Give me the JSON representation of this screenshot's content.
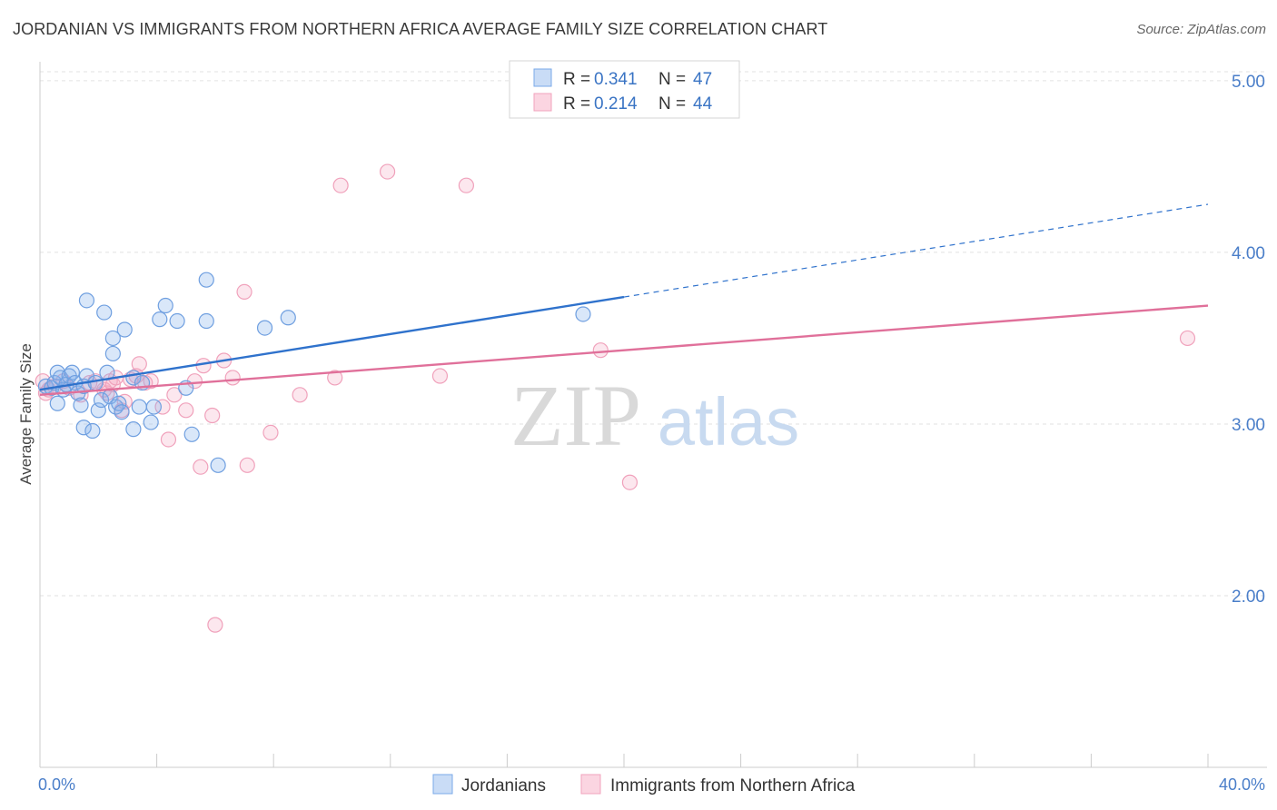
{
  "header": {
    "title": "JORDANIAN VS IMMIGRANTS FROM NORTHERN AFRICA AVERAGE FAMILY SIZE CORRELATION CHART",
    "source": "Source: ZipAtlas.com"
  },
  "watermark": {
    "zip": "ZIP",
    "atlas": "atlas"
  },
  "colors": {
    "jordanians": "#7aaae8",
    "jordanians_line": "#2f72cc",
    "immigrants": "#f2a3bd",
    "immigrants_line": "#e0709a",
    "axis_tick_text": "#4a7ec9"
  },
  "chart_data": {
    "type": "scatter",
    "ylabel": "Average Family Size",
    "x_tick_labels": [
      "0.0%",
      "40.0%"
    ],
    "y_tick_labels": [
      "2.00",
      "3.00",
      "4.00",
      "5.00"
    ],
    "xlim": [
      0,
      40
    ],
    "ylim": [
      1.0,
      5.1
    ],
    "grid": true,
    "legend_position": "top-center",
    "stats": [
      {
        "series": "Jordanians",
        "r_label": "R =",
        "r": "0.341",
        "n_label": "N =",
        "n": "47"
      },
      {
        "series": "Immigrants from Northern Africa",
        "r_label": "R =",
        "r": "0.214",
        "n_label": "N =",
        "n": "44"
      }
    ],
    "series": [
      {
        "name": "Jordanians",
        "trend": {
          "x0": 0,
          "y0": 3.2,
          "x1": 20,
          "y1": 3.74,
          "dashed_to_x": 40,
          "dashed_to_y": 4.28
        },
        "points": [
          [
            0.2,
            3.22
          ],
          [
            0.4,
            3.21
          ],
          [
            0.5,
            3.24
          ],
          [
            0.6,
            3.3
          ],
          [
            0.7,
            3.27
          ],
          [
            0.8,
            3.2
          ],
          [
            0.9,
            3.23
          ],
          [
            0.6,
            3.12
          ],
          [
            1.0,
            3.28
          ],
          [
            1.1,
            3.3
          ],
          [
            1.2,
            3.24
          ],
          [
            1.3,
            3.18
          ],
          [
            1.4,
            3.11
          ],
          [
            1.5,
            3.22
          ],
          [
            1.6,
            3.28
          ],
          [
            1.5,
            2.98
          ],
          [
            1.8,
            2.96
          ],
          [
            1.9,
            3.24
          ],
          [
            2.0,
            3.08
          ],
          [
            2.1,
            3.14
          ],
          [
            2.2,
            3.65
          ],
          [
            2.3,
            3.3
          ],
          [
            2.4,
            3.16
          ],
          [
            2.5,
            3.41
          ],
          [
            2.5,
            3.5
          ],
          [
            2.6,
            3.1
          ],
          [
            2.7,
            3.12
          ],
          [
            2.8,
            3.07
          ],
          [
            2.9,
            3.55
          ],
          [
            1.6,
            3.72
          ],
          [
            3.2,
            3.27
          ],
          [
            3.2,
            2.97
          ],
          [
            3.4,
            3.1
          ],
          [
            3.5,
            3.24
          ],
          [
            3.8,
            3.01
          ],
          [
            3.9,
            3.1
          ],
          [
            4.1,
            3.61
          ],
          [
            4.3,
            3.69
          ],
          [
            4.7,
            3.6
          ],
          [
            5.0,
            3.21
          ],
          [
            5.2,
            2.94
          ],
          [
            5.7,
            3.84
          ],
          [
            5.7,
            3.6
          ],
          [
            6.1,
            2.76
          ],
          [
            7.7,
            3.56
          ],
          [
            8.5,
            3.62
          ],
          [
            18.6,
            3.64
          ]
        ]
      },
      {
        "name": "Immigrants from Northern Africa",
        "trend": {
          "x0": 0,
          "y0": 3.17,
          "x1": 40,
          "y1": 3.69
        },
        "points": [
          [
            0.1,
            3.25
          ],
          [
            0.2,
            3.18
          ],
          [
            0.3,
            3.2
          ],
          [
            0.5,
            3.22
          ],
          [
            0.8,
            3.25
          ],
          [
            1.0,
            3.21
          ],
          [
            1.4,
            3.17
          ],
          [
            1.7,
            3.24
          ],
          [
            1.9,
            3.25
          ],
          [
            2.2,
            3.2
          ],
          [
            2.3,
            3.18
          ],
          [
            2.4,
            3.25
          ],
          [
            2.5,
            3.23
          ],
          [
            2.6,
            3.27
          ],
          [
            2.8,
            3.08
          ],
          [
            2.9,
            3.13
          ],
          [
            3.1,
            3.26
          ],
          [
            3.3,
            3.28
          ],
          [
            3.4,
            3.35
          ],
          [
            3.6,
            3.24
          ],
          [
            3.8,
            3.25
          ],
          [
            4.2,
            3.1
          ],
          [
            4.4,
            2.91
          ],
          [
            4.6,
            3.17
          ],
          [
            5.0,
            3.08
          ],
          [
            5.3,
            3.25
          ],
          [
            5.5,
            2.75
          ],
          [
            5.6,
            3.34
          ],
          [
            5.9,
            3.05
          ],
          [
            6.0,
            1.83
          ],
          [
            6.3,
            3.37
          ],
          [
            6.6,
            3.27
          ],
          [
            7.0,
            3.77
          ],
          [
            7.1,
            2.76
          ],
          [
            7.9,
            2.95
          ],
          [
            8.9,
            3.17
          ],
          [
            10.1,
            3.27
          ],
          [
            10.3,
            4.39
          ],
          [
            11.9,
            4.47
          ],
          [
            13.7,
            3.28
          ],
          [
            14.6,
            4.39
          ],
          [
            19.2,
            3.43
          ],
          [
            20.2,
            2.66
          ],
          [
            39.3,
            3.5
          ]
        ]
      }
    ]
  }
}
